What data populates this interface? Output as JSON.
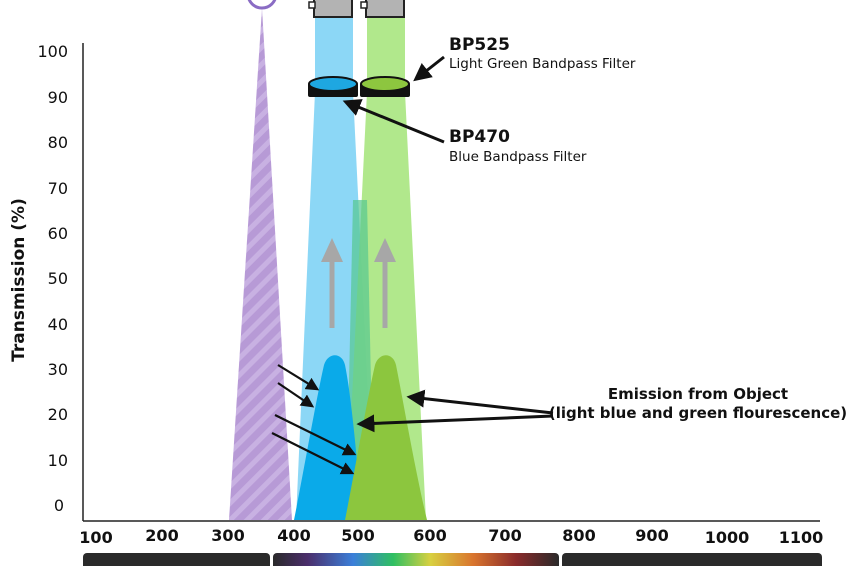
{
  "axes": {
    "y_label": "Transmission (%)",
    "y_ticks": [
      "100",
      "90",
      "80",
      "70",
      "60",
      "50",
      "40",
      "30",
      "20",
      "10",
      "0"
    ],
    "x_ticks": [
      "100",
      "200",
      "300",
      "400",
      "500",
      "600",
      "700",
      "800",
      "900",
      "1000",
      "1100"
    ]
  },
  "filters": {
    "bp525": {
      "name": "BP525",
      "description": "Light Green Bandpass Filter",
      "color": "#8dc63f"
    },
    "bp470": {
      "name": "BP470",
      "description": "Blue Bandpass Filter",
      "color": "#1ea7e1"
    }
  },
  "emission": {
    "line1": "Emission from Object",
    "line2": "(light blue and green flourescence)"
  },
  "colors": {
    "uv_hatch": "#b79ad6",
    "blue_beam": "#7fd3f5",
    "green_beam": "#a8e57f",
    "blue_emission": "#0aaae9",
    "green_emission": "#8cc63e",
    "arrow_gray": "#a7a7a7"
  }
}
